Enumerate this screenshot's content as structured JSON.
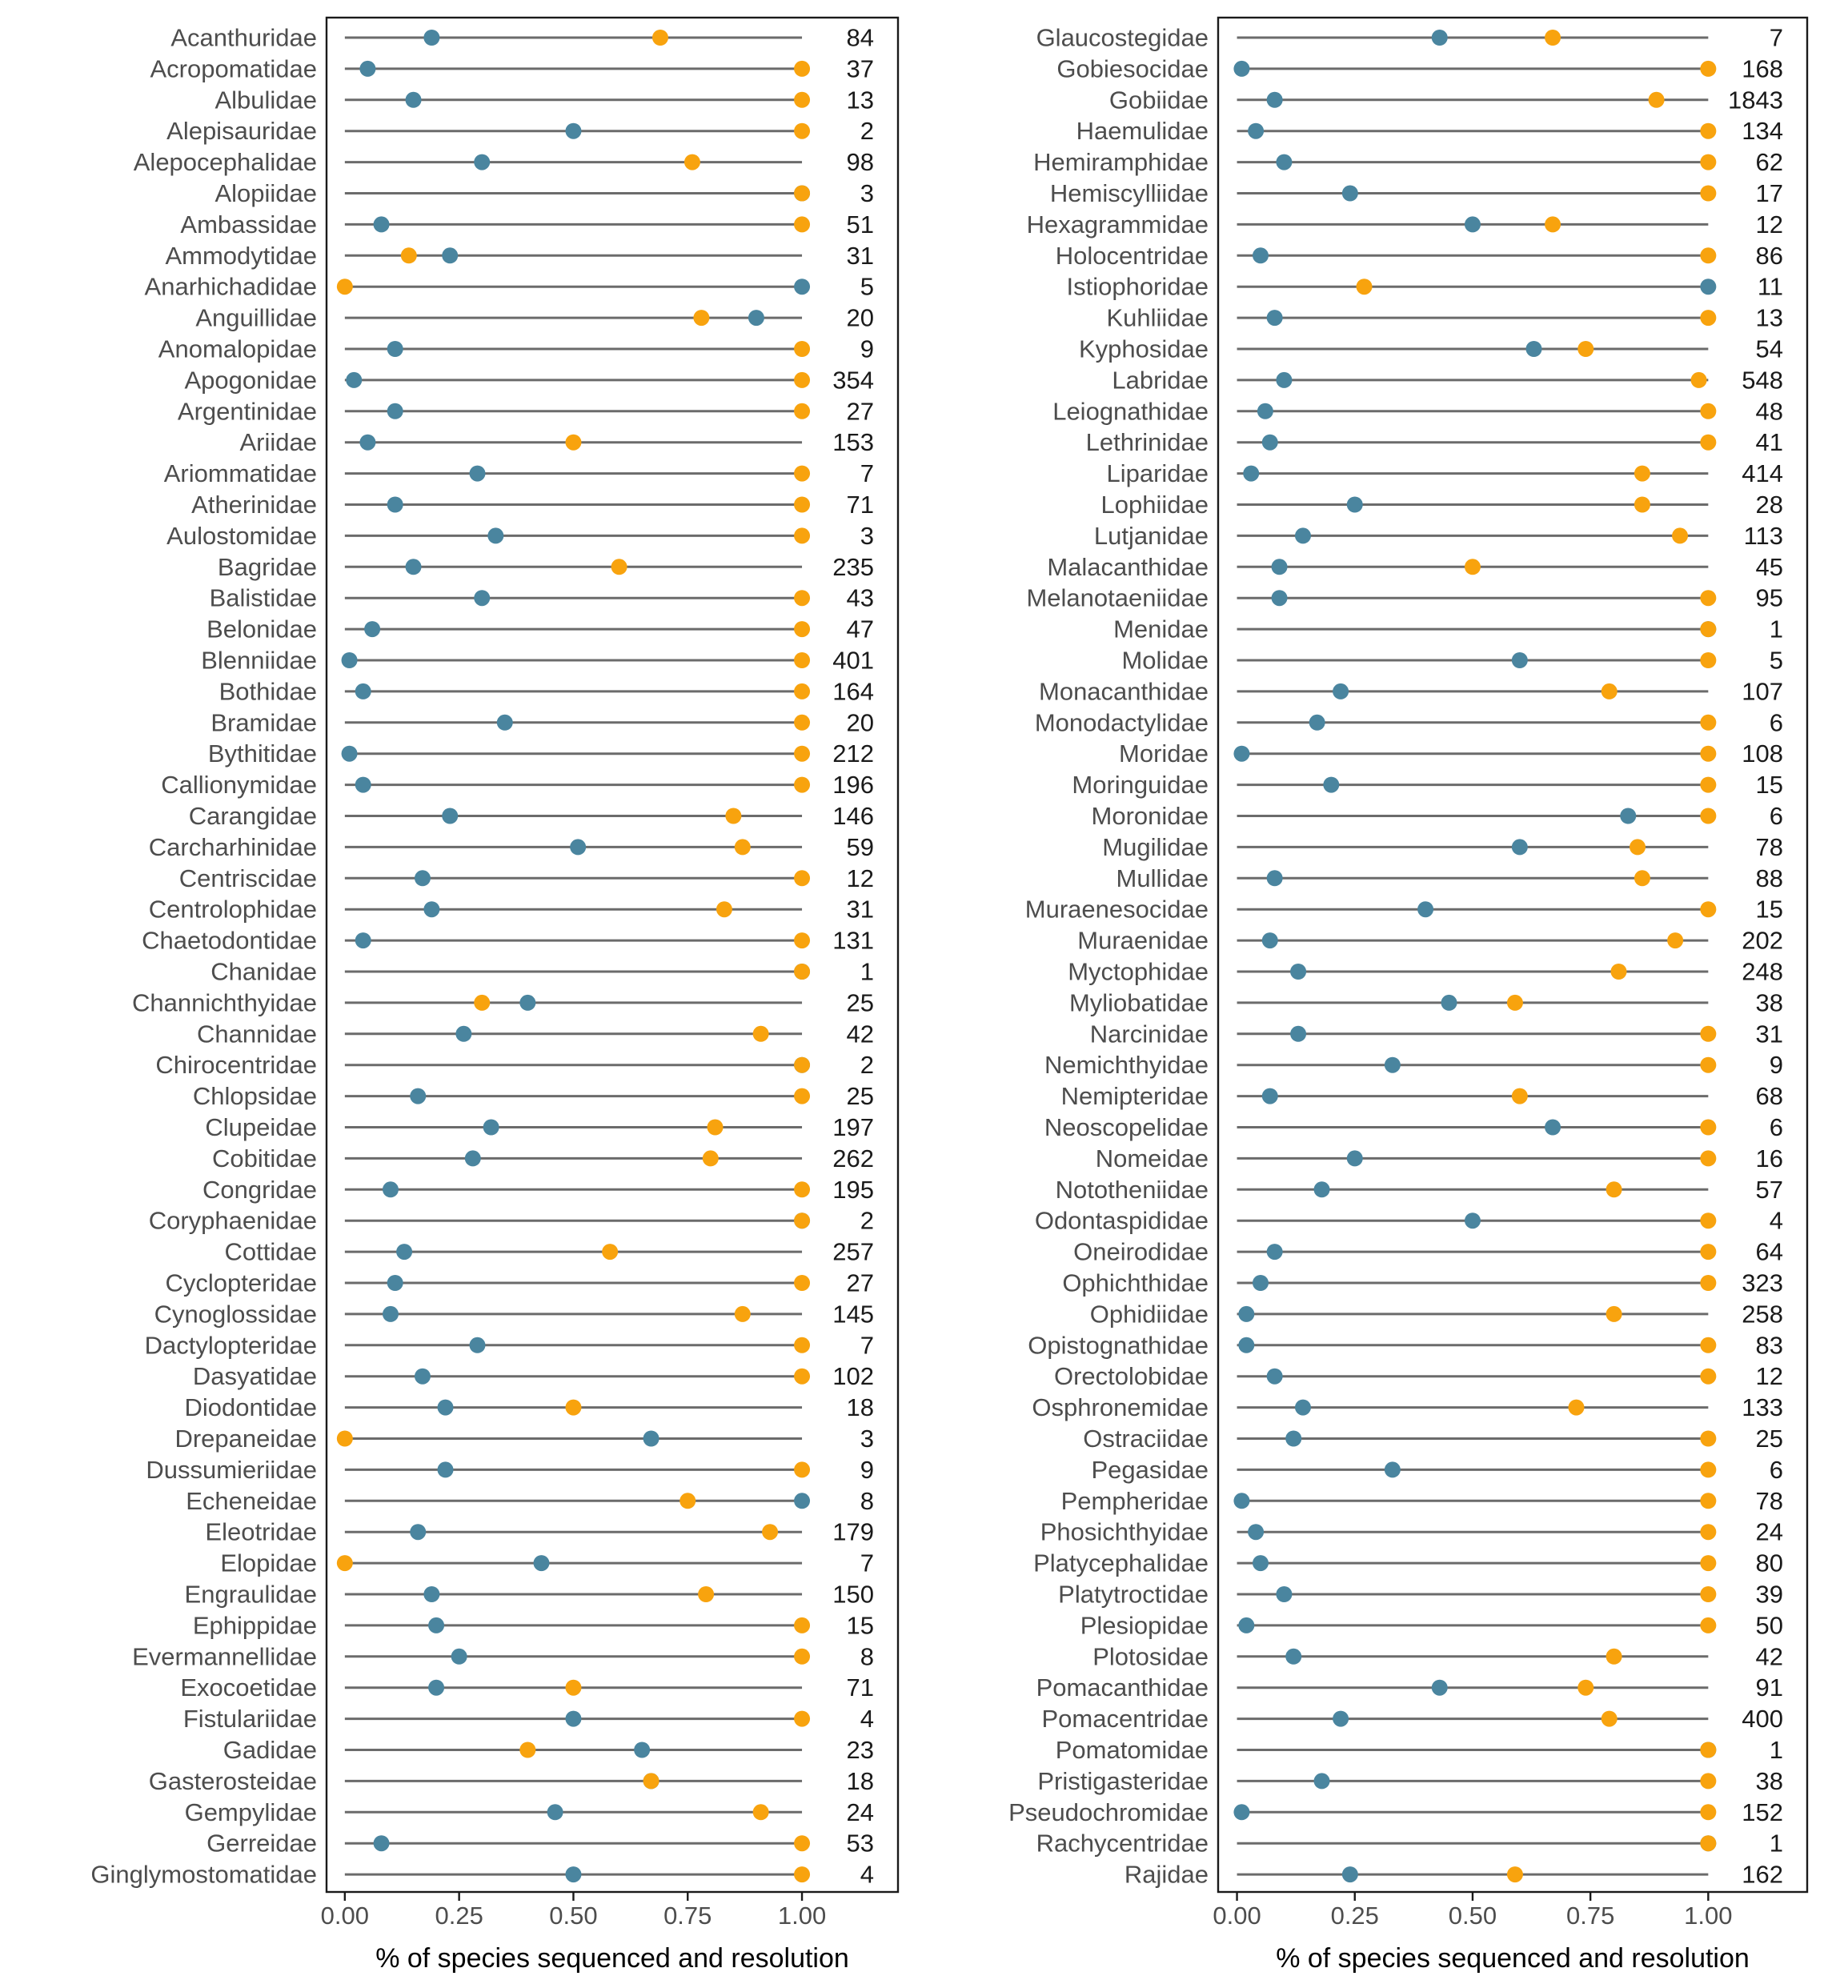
{
  "colors": {
    "sequenced": "#4a859f",
    "resolution": "#f8a30e",
    "segment": "#6b6b6b",
    "frame": "#1a1a1a"
  },
  "chart_data": [
    {
      "type": "dumbbell",
      "xlabel": "% of species sequenced and resolution",
      "xlim": [
        -0.04,
        1.21
      ],
      "xticks": [
        "0.00",
        "0.25",
        "0.50",
        "0.75",
        "1.00"
      ],
      "tick_values": [
        0,
        0.25,
        0.5,
        0.75,
        1.0
      ],
      "series_order": [
        "sequenced",
        "resolution"
      ],
      "rows": [
        {
          "family": "Acanthuridae",
          "sequenced": 0.19,
          "resolution": 0.69,
          "count": "84"
        },
        {
          "family": "Acropomatidae",
          "sequenced": 0.05,
          "resolution": 1.0,
          "count": "37"
        },
        {
          "family": "Albulidae",
          "sequenced": 0.15,
          "resolution": 1.0,
          "count": "13"
        },
        {
          "family": "Alepisauridae",
          "sequenced": 0.5,
          "resolution": 1.0,
          "count": "2"
        },
        {
          "family": "Alepocephalidae",
          "sequenced": 0.3,
          "resolution": 0.76,
          "count": "98"
        },
        {
          "family": "Alopiidae",
          "sequenced": 1.0,
          "resolution": 1.0,
          "count": "3"
        },
        {
          "family": "Ambassidae",
          "sequenced": 0.08,
          "resolution": 1.0,
          "count": "51"
        },
        {
          "family": "Ammodytidae",
          "sequenced": 0.23,
          "resolution": 0.14,
          "count": "31"
        },
        {
          "family": "Anarhichadidae",
          "sequenced": 1.0,
          "resolution": 0.0,
          "count": "5"
        },
        {
          "family": "Anguillidae",
          "sequenced": 0.9,
          "resolution": 0.78,
          "count": "20"
        },
        {
          "family": "Anomalopidae",
          "sequenced": 0.11,
          "resolution": 1.0,
          "count": "9"
        },
        {
          "family": "Apogonidae",
          "sequenced": 0.02,
          "resolution": 1.0,
          "count": "354"
        },
        {
          "family": "Argentinidae",
          "sequenced": 0.11,
          "resolution": 1.0,
          "count": "27"
        },
        {
          "family": "Ariidae",
          "sequenced": 0.05,
          "resolution": 0.5,
          "count": "153"
        },
        {
          "family": "Ariommatidae",
          "sequenced": 0.29,
          "resolution": 1.0,
          "count": "7"
        },
        {
          "family": "Atherinidae",
          "sequenced": 0.11,
          "resolution": 1.0,
          "count": "71"
        },
        {
          "family": "Aulostomidae",
          "sequenced": 0.33,
          "resolution": 1.0,
          "count": "3"
        },
        {
          "family": "Bagridae",
          "sequenced": 0.15,
          "resolution": 0.6,
          "count": "235"
        },
        {
          "family": "Balistidae",
          "sequenced": 0.3,
          "resolution": 1.0,
          "count": "43"
        },
        {
          "family": "Belonidae",
          "sequenced": 0.06,
          "resolution": 1.0,
          "count": "47"
        },
        {
          "family": "Blenniidae",
          "sequenced": 0.01,
          "resolution": 1.0,
          "count": "401"
        },
        {
          "family": "Bothidae",
          "sequenced": 0.04,
          "resolution": 1.0,
          "count": "164"
        },
        {
          "family": "Bramidae",
          "sequenced": 0.35,
          "resolution": 1.0,
          "count": "20"
        },
        {
          "family": "Bythitidae",
          "sequenced": 0.01,
          "resolution": 1.0,
          "count": "212"
        },
        {
          "family": "Callionymidae",
          "sequenced": 0.04,
          "resolution": 1.0,
          "count": "196"
        },
        {
          "family": "Carangidae",
          "sequenced": 0.23,
          "resolution": 0.85,
          "count": "146"
        },
        {
          "family": "Carcharhinidae",
          "sequenced": 0.51,
          "resolution": 0.87,
          "count": "59"
        },
        {
          "family": "Centriscidae",
          "sequenced": 0.17,
          "resolution": 1.0,
          "count": "12"
        },
        {
          "family": "Centrolophidae",
          "sequenced": 0.19,
          "resolution": 0.83,
          "count": "31"
        },
        {
          "family": "Chaetodontidae",
          "sequenced": 0.04,
          "resolution": 1.0,
          "count": "131"
        },
        {
          "family": "Chanidae",
          "sequenced": 1.0,
          "resolution": 1.0,
          "count": "1"
        },
        {
          "family": "Channichthyidae",
          "sequenced": 0.4,
          "resolution": 0.3,
          "count": "25"
        },
        {
          "family": "Channidae",
          "sequenced": 0.26,
          "resolution": 0.91,
          "count": "42"
        },
        {
          "family": "Chirocentridae",
          "sequenced": 1.0,
          "resolution": 1.0,
          "count": "2"
        },
        {
          "family": "Chlopsidae",
          "sequenced": 0.16,
          "resolution": 1.0,
          "count": "25"
        },
        {
          "family": "Clupeidae",
          "sequenced": 0.32,
          "resolution": 0.81,
          "count": "197"
        },
        {
          "family": "Cobitidae",
          "sequenced": 0.28,
          "resolution": 0.8,
          "count": "262"
        },
        {
          "family": "Congridae",
          "sequenced": 0.1,
          "resolution": 1.0,
          "count": "195"
        },
        {
          "family": "Coryphaenidae",
          "sequenced": 1.0,
          "resolution": 1.0,
          "count": "2"
        },
        {
          "family": "Cottidae",
          "sequenced": 0.13,
          "resolution": 0.58,
          "count": "257"
        },
        {
          "family": "Cyclopteridae",
          "sequenced": 0.11,
          "resolution": 1.0,
          "count": "27"
        },
        {
          "family": "Cynoglossidae",
          "sequenced": 0.1,
          "resolution": 0.87,
          "count": "145"
        },
        {
          "family": "Dactylopteridae",
          "sequenced": 0.29,
          "resolution": 1.0,
          "count": "7"
        },
        {
          "family": "Dasyatidae",
          "sequenced": 0.17,
          "resolution": 1.0,
          "count": "102"
        },
        {
          "family": "Diodontidae",
          "sequenced": 0.22,
          "resolution": 0.5,
          "count": "18"
        },
        {
          "family": "Drepaneidae",
          "sequenced": 0.67,
          "resolution": 0.0,
          "count": "3"
        },
        {
          "family": "Dussumieriidae",
          "sequenced": 0.22,
          "resolution": 1.0,
          "count": "9"
        },
        {
          "family": "Echeneidae",
          "sequenced": 1.0,
          "resolution": 0.75,
          "count": "8"
        },
        {
          "family": "Eleotridae",
          "sequenced": 0.16,
          "resolution": 0.93,
          "count": "179"
        },
        {
          "family": "Elopidae",
          "sequenced": 0.43,
          "resolution": 0.0,
          "count": "7"
        },
        {
          "family": "Engraulidae",
          "sequenced": 0.19,
          "resolution": 0.79,
          "count": "150"
        },
        {
          "family": "Ephippidae",
          "sequenced": 0.2,
          "resolution": 1.0,
          "count": "15"
        },
        {
          "family": "Evermannellidae",
          "sequenced": 0.25,
          "resolution": 1.0,
          "count": "8"
        },
        {
          "family": "Exocoetidae",
          "sequenced": 0.2,
          "resolution": 0.5,
          "count": "71"
        },
        {
          "family": "Fistulariidae",
          "sequenced": 0.5,
          "resolution": 1.0,
          "count": "4"
        },
        {
          "family": "Gadidae",
          "sequenced": 0.65,
          "resolution": 0.4,
          "count": "23"
        },
        {
          "family": "Gasterosteidae",
          "sequenced": 0.67,
          "resolution": 0.67,
          "count": "18"
        },
        {
          "family": "Gempylidae",
          "sequenced": 0.46,
          "resolution": 0.91,
          "count": "24"
        },
        {
          "family": "Gerreidae",
          "sequenced": 0.08,
          "resolution": 1.0,
          "count": "53"
        },
        {
          "family": "Ginglymostomatidae",
          "sequenced": 0.5,
          "resolution": 1.0,
          "count": "4"
        }
      ]
    },
    {
      "type": "dumbbell",
      "xlabel": "% of species sequenced and resolution",
      "xlim": [
        -0.04,
        1.21
      ],
      "xticks": [
        "0.00",
        "0.25",
        "0.50",
        "0.75",
        "1.00"
      ],
      "tick_values": [
        0,
        0.25,
        0.5,
        0.75,
        1.0
      ],
      "series_order": [
        "sequenced",
        "resolution"
      ],
      "rows": [
        {
          "family": "Glaucostegidae",
          "sequenced": 0.43,
          "resolution": 0.67,
          "count": "7"
        },
        {
          "family": "Gobiesocidae",
          "sequenced": 0.01,
          "resolution": 1.0,
          "count": "168"
        },
        {
          "family": "Gobiidae",
          "sequenced": 0.08,
          "resolution": 0.89,
          "count": "1843"
        },
        {
          "family": "Haemulidae",
          "sequenced": 0.04,
          "resolution": 1.0,
          "count": "134"
        },
        {
          "family": "Hemiramphidae",
          "sequenced": 0.1,
          "resolution": 1.0,
          "count": "62"
        },
        {
          "family": "Hemiscylliidae",
          "sequenced": 0.24,
          "resolution": 1.0,
          "count": "17"
        },
        {
          "family": "Hexagrammidae",
          "sequenced": 0.5,
          "resolution": 0.67,
          "count": "12"
        },
        {
          "family": "Holocentridae",
          "sequenced": 0.05,
          "resolution": 1.0,
          "count": "86"
        },
        {
          "family": "Istiophoridae",
          "sequenced": 1.0,
          "resolution": 0.27,
          "count": "11"
        },
        {
          "family": "Kuhliidae",
          "sequenced": 0.08,
          "resolution": 1.0,
          "count": "13"
        },
        {
          "family": "Kyphosidae",
          "sequenced": 0.63,
          "resolution": 0.74,
          "count": "54"
        },
        {
          "family": "Labridae",
          "sequenced": 0.1,
          "resolution": 0.98,
          "count": "548"
        },
        {
          "family": "Leiognathidae",
          "sequenced": 0.06,
          "resolution": 1.0,
          "count": "48"
        },
        {
          "family": "Lethrinidae",
          "sequenced": 0.07,
          "resolution": 1.0,
          "count": "41"
        },
        {
          "family": "Liparidae",
          "sequenced": 0.03,
          "resolution": 0.86,
          "count": "414"
        },
        {
          "family": "Lophiidae",
          "sequenced": 0.25,
          "resolution": 0.86,
          "count": "28"
        },
        {
          "family": "Lutjanidae",
          "sequenced": 0.14,
          "resolution": 0.94,
          "count": "113"
        },
        {
          "family": "Malacanthidae",
          "sequenced": 0.09,
          "resolution": 0.5,
          "count": "45"
        },
        {
          "family": "Melanotaeniidae",
          "sequenced": 0.09,
          "resolution": 1.0,
          "count": "95"
        },
        {
          "family": "Menidae",
          "sequenced": 1.0,
          "resolution": 1.0,
          "count": "1"
        },
        {
          "family": "Molidae",
          "sequenced": 0.6,
          "resolution": 1.0,
          "count": "5"
        },
        {
          "family": "Monacanthidae",
          "sequenced": 0.22,
          "resolution": 0.79,
          "count": "107"
        },
        {
          "family": "Monodactylidae",
          "sequenced": 0.17,
          "resolution": 1.0,
          "count": "6"
        },
        {
          "family": "Moridae",
          "sequenced": 0.01,
          "resolution": 1.0,
          "count": "108"
        },
        {
          "family": "Moringuidae",
          "sequenced": 0.2,
          "resolution": 1.0,
          "count": "15"
        },
        {
          "family": "Moronidae",
          "sequenced": 0.83,
          "resolution": 1.0,
          "count": "6"
        },
        {
          "family": "Mugilidae",
          "sequenced": 0.6,
          "resolution": 0.85,
          "count": "78"
        },
        {
          "family": "Mullidae",
          "sequenced": 0.08,
          "resolution": 0.86,
          "count": "88"
        },
        {
          "family": "Muraenesocidae",
          "sequenced": 0.4,
          "resolution": 1.0,
          "count": "15"
        },
        {
          "family": "Muraenidae",
          "sequenced": 0.07,
          "resolution": 0.93,
          "count": "202"
        },
        {
          "family": "Myctophidae",
          "sequenced": 0.13,
          "resolution": 0.81,
          "count": "248"
        },
        {
          "family": "Myliobatidae",
          "sequenced": 0.45,
          "resolution": 0.59,
          "count": "38"
        },
        {
          "family": "Narcinidae",
          "sequenced": 0.13,
          "resolution": 1.0,
          "count": "31"
        },
        {
          "family": "Nemichthyidae",
          "sequenced": 0.33,
          "resolution": 1.0,
          "count": "9"
        },
        {
          "family": "Nemipteridae",
          "sequenced": 0.07,
          "resolution": 0.6,
          "count": "68"
        },
        {
          "family": "Neoscopelidae",
          "sequenced": 0.67,
          "resolution": 1.0,
          "count": "6"
        },
        {
          "family": "Nomeidae",
          "sequenced": 0.25,
          "resolution": 1.0,
          "count": "16"
        },
        {
          "family": "Nototheniidae",
          "sequenced": 0.18,
          "resolution": 0.8,
          "count": "57"
        },
        {
          "family": "Odontaspididae",
          "sequenced": 0.5,
          "resolution": 1.0,
          "count": "4"
        },
        {
          "family": "Oneirodidae",
          "sequenced": 0.08,
          "resolution": 1.0,
          "count": "64"
        },
        {
          "family": "Ophichthidae",
          "sequenced": 0.05,
          "resolution": 1.0,
          "count": "323"
        },
        {
          "family": "Ophidiidae",
          "sequenced": 0.02,
          "resolution": 0.8,
          "count": "258"
        },
        {
          "family": "Opistognathidae",
          "sequenced": 0.02,
          "resolution": 1.0,
          "count": "83"
        },
        {
          "family": "Orectolobidae",
          "sequenced": 0.08,
          "resolution": 1.0,
          "count": "12"
        },
        {
          "family": "Osphronemidae",
          "sequenced": 0.14,
          "resolution": 0.72,
          "count": "133"
        },
        {
          "family": "Ostraciidae",
          "sequenced": 0.12,
          "resolution": 1.0,
          "count": "25"
        },
        {
          "family": "Pegasidae",
          "sequenced": 0.33,
          "resolution": 1.0,
          "count": "6"
        },
        {
          "family": "Pempheridae",
          "sequenced": 0.01,
          "resolution": 1.0,
          "count": "78"
        },
        {
          "family": "Phosichthyidae",
          "sequenced": 0.04,
          "resolution": 1.0,
          "count": "24"
        },
        {
          "family": "Platycephalidae",
          "sequenced": 0.05,
          "resolution": 1.0,
          "count": "80"
        },
        {
          "family": "Platytroctidae",
          "sequenced": 0.1,
          "resolution": 1.0,
          "count": "39"
        },
        {
          "family": "Plesiopidae",
          "sequenced": 0.02,
          "resolution": 1.0,
          "count": "50"
        },
        {
          "family": "Plotosidae",
          "sequenced": 0.12,
          "resolution": 0.8,
          "count": "42"
        },
        {
          "family": "Pomacanthidae",
          "sequenced": 0.43,
          "resolution": 0.74,
          "count": "91"
        },
        {
          "family": "Pomacentridae",
          "sequenced": 0.22,
          "resolution": 0.79,
          "count": "400"
        },
        {
          "family": "Pomatomidae",
          "sequenced": 1.0,
          "resolution": 1.0,
          "count": "1"
        },
        {
          "family": "Pristigasteridae",
          "sequenced": 0.18,
          "resolution": 1.0,
          "count": "38"
        },
        {
          "family": "Pseudochromidae",
          "sequenced": 0.01,
          "resolution": 1.0,
          "count": "152"
        },
        {
          "family": "Rachycentridae",
          "sequenced": 1.0,
          "resolution": 1.0,
          "count": "1"
        },
        {
          "family": "Rajidae",
          "sequenced": 0.24,
          "resolution": 0.59,
          "count": "162"
        }
      ]
    }
  ]
}
